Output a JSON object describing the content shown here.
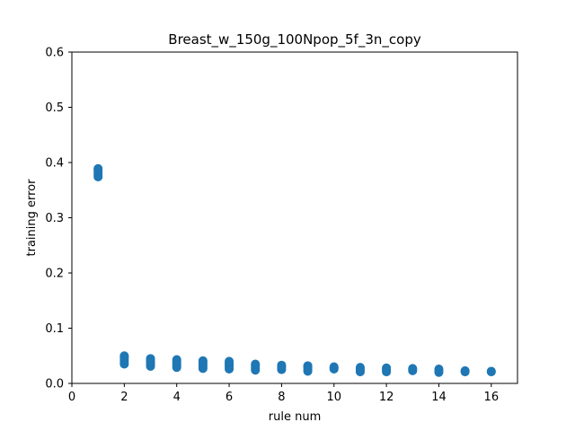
{
  "chart_data": {
    "type": "scatter",
    "title": "Breast_w_150g_100Npop_5f_3n_copy",
    "xlabel": "rule num",
    "ylabel": "training error",
    "xlim": [
      0,
      17
    ],
    "ylim": [
      0,
      0.6
    ],
    "xticks": [
      0,
      2,
      4,
      6,
      8,
      10,
      12,
      14,
      16
    ],
    "yticks": [
      0.0,
      0.1,
      0.2,
      0.3,
      0.4,
      0.5,
      0.6
    ],
    "xtick_labels": [
      "0",
      "2",
      "4",
      "6",
      "8",
      "10",
      "12",
      "14",
      "16"
    ],
    "ytick_labels": [
      "0.0",
      "0.1",
      "0.2",
      "0.3",
      "0.4",
      "0.5",
      "0.6"
    ],
    "grid": false,
    "marker_color": "#1f77b4",
    "series": [
      {
        "points": [
          [
            1,
            0.374
          ],
          [
            1,
            0.377
          ],
          [
            1,
            0.38
          ],
          [
            1,
            0.384
          ],
          [
            1,
            0.387
          ],
          [
            1,
            0.389
          ],
          [
            2,
            0.035
          ],
          [
            2,
            0.038
          ],
          [
            2,
            0.042
          ],
          [
            2,
            0.045
          ],
          [
            2,
            0.048
          ],
          [
            2,
            0.05
          ],
          [
            3,
            0.031
          ],
          [
            3,
            0.034
          ],
          [
            3,
            0.037
          ],
          [
            3,
            0.04
          ],
          [
            3,
            0.043
          ],
          [
            3,
            0.045
          ],
          [
            4,
            0.029
          ],
          [
            4,
            0.032
          ],
          [
            4,
            0.035
          ],
          [
            4,
            0.038
          ],
          [
            4,
            0.041
          ],
          [
            4,
            0.043
          ],
          [
            5,
            0.027
          ],
          [
            5,
            0.03
          ],
          [
            5,
            0.033
          ],
          [
            5,
            0.036
          ],
          [
            5,
            0.039
          ],
          [
            5,
            0.041
          ],
          [
            6,
            0.026
          ],
          [
            6,
            0.029
          ],
          [
            6,
            0.032
          ],
          [
            6,
            0.035
          ],
          [
            6,
            0.038
          ],
          [
            6,
            0.04
          ],
          [
            7,
            0.024
          ],
          [
            7,
            0.027
          ],
          [
            7,
            0.03
          ],
          [
            7,
            0.033
          ],
          [
            7,
            0.035
          ],
          [
            8,
            0.025
          ],
          [
            8,
            0.028
          ],
          [
            8,
            0.031
          ],
          [
            8,
            0.033
          ],
          [
            9,
            0.022
          ],
          [
            9,
            0.025
          ],
          [
            9,
            0.028
          ],
          [
            9,
            0.031
          ],
          [
            9,
            0.032
          ],
          [
            10,
            0.026
          ],
          [
            10,
            0.028
          ],
          [
            10,
            0.03
          ],
          [
            11,
            0.021
          ],
          [
            11,
            0.024
          ],
          [
            11,
            0.027
          ],
          [
            11,
            0.029
          ],
          [
            12,
            0.021
          ],
          [
            12,
            0.024
          ],
          [
            12,
            0.026
          ],
          [
            12,
            0.028
          ],
          [
            13,
            0.023
          ],
          [
            13,
            0.025
          ],
          [
            13,
            0.027
          ],
          [
            14,
            0.02
          ],
          [
            14,
            0.023
          ],
          [
            14,
            0.026
          ],
          [
            15,
            0.021
          ],
          [
            15,
            0.023
          ],
          [
            16,
            0.021
          ],
          [
            16,
            0.022
          ]
        ]
      }
    ]
  }
}
